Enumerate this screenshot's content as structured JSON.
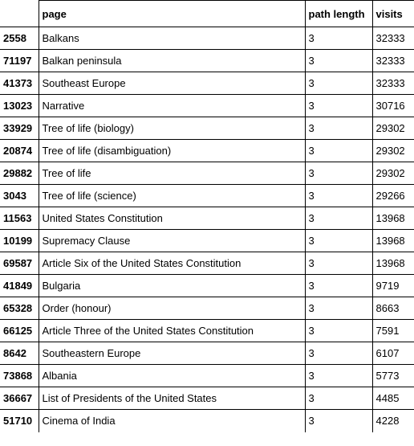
{
  "table": {
    "columns": {
      "index": "",
      "page": "page",
      "path_length": "path length",
      "visits": "visits"
    },
    "rows": [
      {
        "index": "2558",
        "page": "Balkans",
        "path_length": "3",
        "visits": "32333"
      },
      {
        "index": "71197",
        "page": "Balkan peninsula",
        "path_length": "3",
        "visits": "32333"
      },
      {
        "index": "41373",
        "page": "Southeast Europe",
        "path_length": "3",
        "visits": "32333"
      },
      {
        "index": "13023",
        "page": "Narrative",
        "path_length": "3",
        "visits": "30716"
      },
      {
        "index": "33929",
        "page": "Tree of life (biology)",
        "path_length": "3",
        "visits": "29302"
      },
      {
        "index": "20874",
        "page": "Tree of life (disambiguation)",
        "path_length": "3",
        "visits": "29302"
      },
      {
        "index": "29882",
        "page": "Tree of life",
        "path_length": "3",
        "visits": "29302"
      },
      {
        "index": "3043",
        "page": "Tree of life (science)",
        "path_length": "3",
        "visits": "29266"
      },
      {
        "index": "11563",
        "page": "United States Constitution",
        "path_length": "3",
        "visits": "13968"
      },
      {
        "index": "10199",
        "page": "Supremacy Clause",
        "path_length": "3",
        "visits": "13968"
      },
      {
        "index": "69587",
        "page": "Article Six of the United States Constitution",
        "path_length": "3",
        "visits": "13968"
      },
      {
        "index": "41849",
        "page": "Bulgaria",
        "path_length": "3",
        "visits": "9719"
      },
      {
        "index": "65328",
        "page": "Order (honour)",
        "path_length": "3",
        "visits": "8663"
      },
      {
        "index": "66125",
        "page": "Article Three of the United States Constitution",
        "path_length": "3",
        "visits": "7591"
      },
      {
        "index": "8642",
        "page": "Southeastern Europe",
        "path_length": "3",
        "visits": "6107"
      },
      {
        "index": "73868",
        "page": "Albania",
        "path_length": "3",
        "visits": "5773"
      },
      {
        "index": "36667",
        "page": "List of Presidents of the United States",
        "path_length": "3",
        "visits": "4485"
      },
      {
        "index": "51710",
        "page": "Cinema of India",
        "path_length": "3",
        "visits": "4228"
      }
    ]
  }
}
